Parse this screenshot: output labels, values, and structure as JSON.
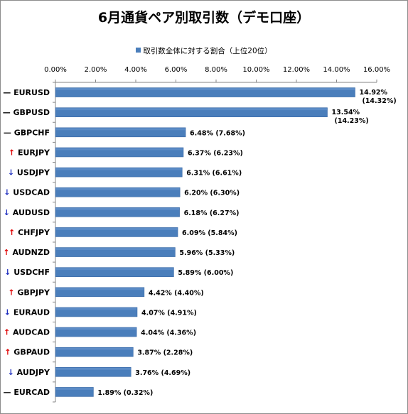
{
  "chart_data": {
    "type": "bar",
    "orientation": "horizontal",
    "title": "6月通貨ペア別取引数（デモ口座）",
    "legend_label": "取引数全体に対する割合（上位20位）",
    "legend_position": "top",
    "grid": false,
    "xlim": [
      0,
      16
    ],
    "x_ticks": [
      "0.00%",
      "2.00%",
      "4.00%",
      "6.00%",
      "8.00%",
      "10.00%",
      "12.00%",
      "14.00%",
      "16.00%"
    ],
    "bar_color": "#4a7ebb",
    "categories": [
      "EURUSD",
      "GBPUSD",
      "GBPCHF",
      "EURJPY",
      "USDJPY",
      "USDCAD",
      "AUDUSD",
      "CHFJPY",
      "AUDNZD",
      "USDCHF",
      "GBPJPY",
      "EURAUD",
      "AUDCAD",
      "GBPAUD",
      "AUDJPY",
      "EURCAD"
    ],
    "trend": [
      "flat",
      "flat",
      "flat",
      "up",
      "down",
      "down",
      "down",
      "up",
      "up",
      "down",
      "up",
      "down",
      "up",
      "up",
      "down",
      "flat"
    ],
    "trend_symbols": {
      "up": "↑",
      "down": "↓",
      "flat": "—"
    },
    "values": [
      14.92,
      13.54,
      6.48,
      6.37,
      6.31,
      6.2,
      6.18,
      6.09,
      5.96,
      5.89,
      4.42,
      4.07,
      4.04,
      3.87,
      3.76,
      1.89
    ],
    "value_labels": [
      "14.92%",
      "13.54%",
      "6.48%",
      "6.37%",
      "6.31%",
      "6.20%",
      "6.18%",
      "6.09%",
      "5.96%",
      "5.89%",
      "4.42%",
      "4.07%",
      "4.04%",
      "3.87%",
      "3.76%",
      "1.89%"
    ],
    "previous_labels": [
      "(14.32%)",
      "(14.23%)",
      "(7.68%)",
      "(6.23%)",
      "(6.61%)",
      "(6.30%)",
      "(6.27%)",
      "(5.84%)",
      "(5.33%)",
      "(6.00%)",
      "(4.40%)",
      "(4.91%)",
      "(4.36%)",
      "(2.28%)",
      "(4.69%)",
      "(0.32%)"
    ]
  }
}
